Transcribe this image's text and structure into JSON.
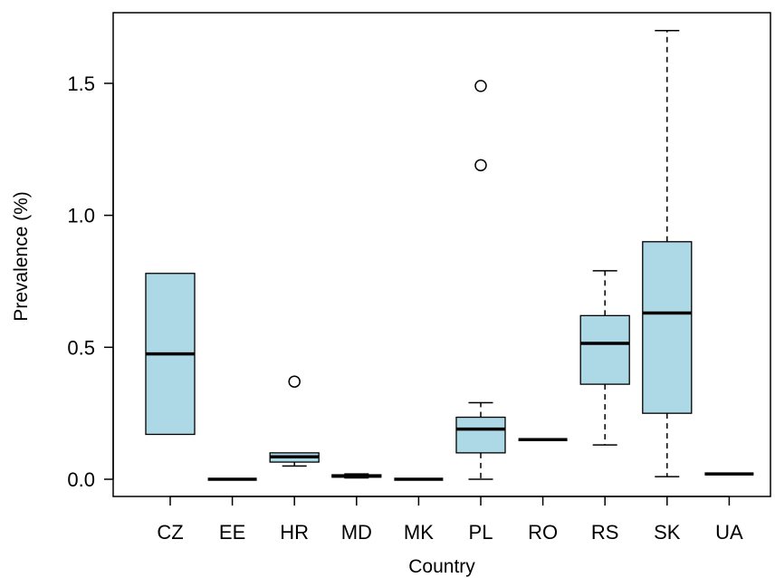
{
  "chart_data": {
    "type": "boxplot",
    "xlabel": "Country",
    "ylabel": "Prevalence (%)",
    "ylim": [
      -0.07,
      1.78
    ],
    "yticks": [
      "0.0",
      "0.5",
      "1.0",
      "1.5"
    ],
    "grid": false,
    "legend": "none",
    "box_color": "#add8e6",
    "categories": [
      "CZ",
      "EE",
      "HR",
      "MD",
      "MK",
      "PL",
      "RO",
      "RS",
      "SK",
      "UA"
    ],
    "boxes": [
      {
        "category": "CZ",
        "whisker_low": 0.17,
        "q1": 0.17,
        "median": 0.475,
        "q3": 0.78,
        "whisker_high": 0.78,
        "outliers": []
      },
      {
        "category": "EE",
        "whisker_low": 0.0,
        "q1": 0.0,
        "median": 0.0,
        "q3": 0.0,
        "whisker_high": 0.0,
        "outliers": []
      },
      {
        "category": "HR",
        "whisker_low": 0.05,
        "q1": 0.065,
        "median": 0.085,
        "q3": 0.1,
        "whisker_high": 0.1,
        "outliers": [
          0.37
        ]
      },
      {
        "category": "MD",
        "whisker_low": 0.005,
        "q1": 0.008,
        "median": 0.012,
        "q3": 0.017,
        "whisker_high": 0.02,
        "outliers": []
      },
      {
        "category": "MK",
        "whisker_low": 0.0,
        "q1": 0.0,
        "median": 0.0,
        "q3": 0.0,
        "whisker_high": 0.0,
        "outliers": []
      },
      {
        "category": "PL",
        "whisker_low": 0.0,
        "q1": 0.1,
        "median": 0.19,
        "q3": 0.235,
        "whisker_high": 0.29,
        "outliers": [
          1.19,
          1.49
        ]
      },
      {
        "category": "RO",
        "whisker_low": 0.15,
        "q1": 0.15,
        "median": 0.15,
        "q3": 0.15,
        "whisker_high": 0.15,
        "outliers": []
      },
      {
        "category": "RS",
        "whisker_low": 0.13,
        "q1": 0.36,
        "median": 0.515,
        "q3": 0.62,
        "whisker_high": 0.79,
        "outliers": []
      },
      {
        "category": "SK",
        "whisker_low": 0.01,
        "q1": 0.25,
        "median": 0.63,
        "q3": 0.9,
        "whisker_high": 1.7,
        "outliers": []
      },
      {
        "category": "UA",
        "whisker_low": 0.02,
        "q1": 0.02,
        "median": 0.02,
        "q3": 0.02,
        "whisker_high": 0.02,
        "outliers": []
      }
    ]
  }
}
